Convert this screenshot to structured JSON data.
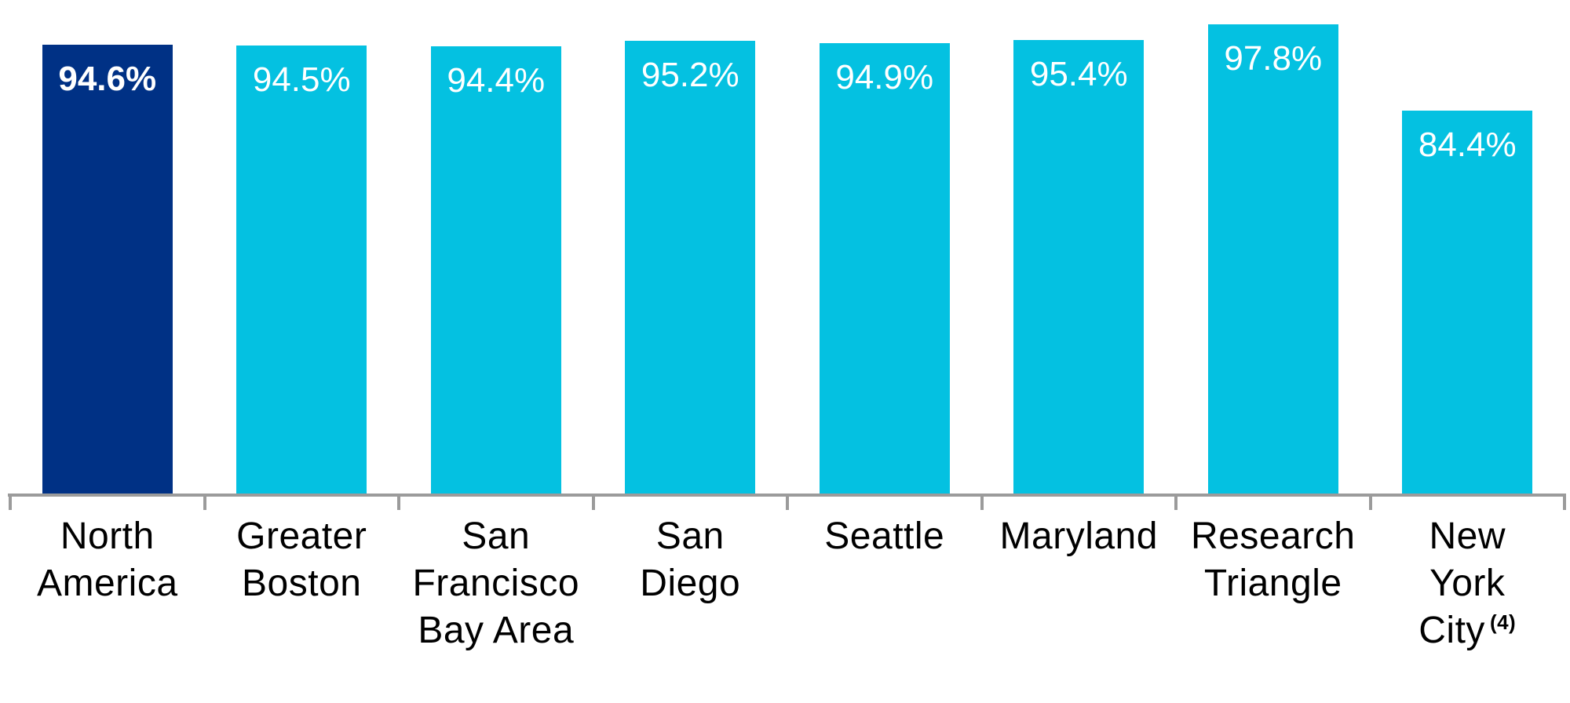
{
  "chart_data": {
    "type": "bar",
    "categories": [
      "North America",
      "Greater Boston",
      "San Francisco Bay Area",
      "San Diego",
      "Seattle",
      "Maryland",
      "Research Triangle",
      "New York City (4)"
    ],
    "values": [
      94.6,
      94.5,
      94.4,
      95.2,
      94.9,
      95.4,
      97.8,
      84.4
    ],
    "title": "",
    "xlabel": "",
    "ylabel": "",
    "ylim": [
      25,
      100
    ],
    "grid": false,
    "legend": false,
    "axis_color": "#9b9b9b",
    "colors": {
      "highlight": "#003185",
      "default": "#04c1e1"
    },
    "bars": [
      {
        "label": "North America",
        "label_lines": [
          "North",
          "America"
        ],
        "value": 94.6,
        "value_label": "94.6%",
        "color": "highlight",
        "value_bold": true
      },
      {
        "label": "Greater Boston",
        "label_lines": [
          "Greater",
          "Boston"
        ],
        "value": 94.5,
        "value_label": "94.5%",
        "color": "default",
        "value_bold": false
      },
      {
        "label": "San Francisco Bay Area",
        "label_lines": [
          "San",
          "Francisco",
          "Bay Area"
        ],
        "value": 94.4,
        "value_label": "94.4%",
        "color": "default",
        "value_bold": false
      },
      {
        "label": "San Diego",
        "label_lines": [
          "San",
          "Diego"
        ],
        "value": 95.2,
        "value_label": "95.2%",
        "color": "default",
        "value_bold": false
      },
      {
        "label": "Seattle",
        "label_lines": [
          "Seattle"
        ],
        "value": 94.9,
        "value_label": "94.9%",
        "color": "default",
        "value_bold": false
      },
      {
        "label": "Maryland",
        "label_lines": [
          "Maryland"
        ],
        "value": 95.4,
        "value_label": "95.4%",
        "color": "default",
        "value_bold": false
      },
      {
        "label": "Research Triangle",
        "label_lines": [
          "Research",
          "Triangle"
        ],
        "value": 97.8,
        "value_label": "97.8%",
        "color": "default",
        "value_bold": false
      },
      {
        "label": "New York City (4)",
        "label_lines": [
          "New",
          "York",
          "City"
        ],
        "superscript": "(4)",
        "value": 84.4,
        "value_label": "84.4%",
        "color": "default",
        "value_bold": false
      }
    ]
  }
}
